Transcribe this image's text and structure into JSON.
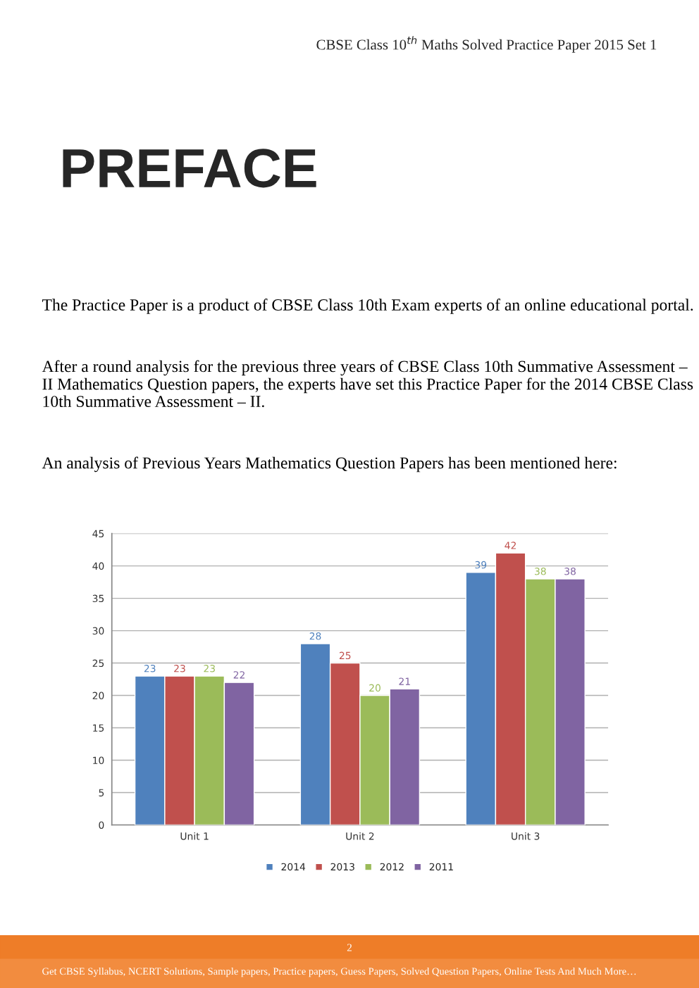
{
  "chart_data": {
    "type": "bar",
    "title": "PREFACE",
    "subtitle": "CBSE Class 10$^{th}$ Maths Solved Practice Paper 2015 Set 1",
    "annotations": [
      "The Practice Paper is a product of CBSE Class 10th Exam experts of an online educational portal.",
      "After a round analysis for the previous three years of CBSE Class 10th Summative Assessment – II Mathematics Question papers, the experts have set this Practice Paper for the 2014 CBSE Class 10th Summative Assessment – II.",
      "An analysis of Previous Years Mathematics Question Papers has been mentioned here:",
      "2",
      "Get CBSE Syllabus, NCERT Solutions, Sample papers, Practice papers, Guess Papers, Solved Question Papers, Online Tests And Much More…"
    ],
    "categories": [
      "Unit 1",
      "Unit 2",
      "Unit 3"
    ],
    "series": [
      {
        "name": "2014",
        "color": "#4f81bd",
        "values": [
          23,
          28,
          39
        ]
      },
      {
        "name": "2013",
        "color": "#c0504d",
        "values": [
          23,
          25,
          42
        ]
      },
      {
        "name": "2012",
        "color": "#9bbb59",
        "values": [
          23,
          20,
          38
        ]
      },
      {
        "name": "2011",
        "color": "#8064a2",
        "values": [
          22,
          21,
          38
        ]
      }
    ],
    "ylim": [
      0,
      45
    ],
    "yticks": [
      0,
      5,
      10,
      15,
      20,
      25,
      30,
      35,
      40,
      45
    ],
    "grid": "y",
    "legend": "bottom",
    "data_labels": true
  }
}
